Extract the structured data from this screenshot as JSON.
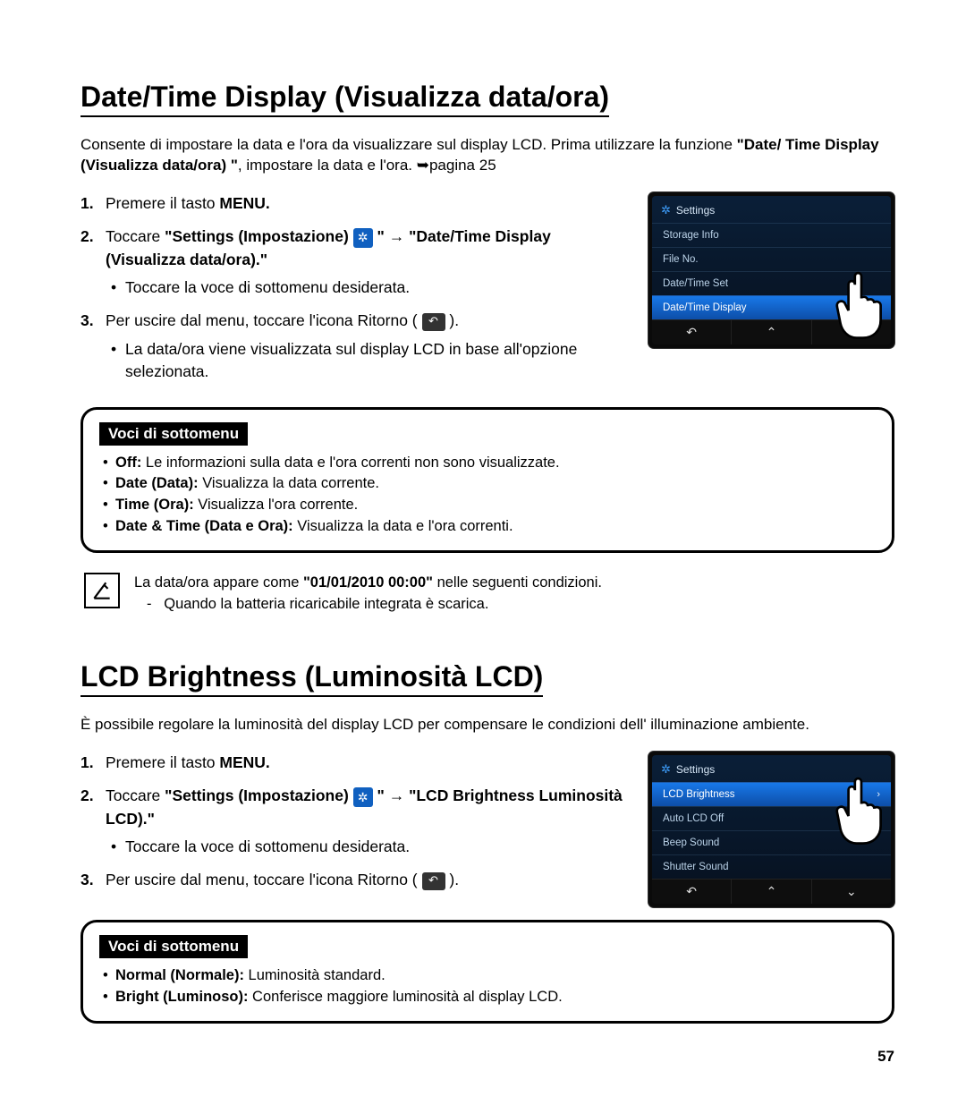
{
  "page_number": "57",
  "section1": {
    "title": "Date/Time Display (Visualizza data/ora)",
    "intro_plain1": "Consente di impostare la data e l'ora da visualizzare sul display LCD. Prima utilizzare la funzione ",
    "intro_bold": "\"Date/ Time Display (Visualizza data/ora) \"",
    "intro_plain2": ", impostare la data e l'ora. ",
    "intro_ref": "➥pagina 25",
    "step1_a": "Premere il tasto ",
    "step1_b": "MENU.",
    "step2_a": "Toccare ",
    "step2_b": "\"Settings (Impostazione) ",
    "step2_c": " \" ",
    "step2_arrow": "→",
    "step2_d": " \"Date/Time Display (Visualizza data/ora).\"",
    "step2_sub": "Toccare la voce di sottomenu desiderata.",
    "step3_a": "Per uscire dal menu, toccare l'icona Ritorno ( ",
    "step3_b": " ).",
    "step3_sub": "La data/ora viene visualizzata sul display LCD in base all'opzione selezionata.",
    "submenu_label": "Voci di sottomenu",
    "submenu_items": [
      {
        "b": "Off:",
        "t": " Le informazioni sulla data e l'ora correnti non sono visualizzate."
      },
      {
        "b": "Date (Data):",
        "t": " Visualizza la data corrente."
      },
      {
        "b": "Time (Ora):",
        "t": " Visualizza l'ora corrente."
      },
      {
        "b": "Date & Time (Data e Ora):",
        "t": " Visualizza la data e l'ora correnti."
      }
    ],
    "note_line1_a": "La data/ora appare come ",
    "note_line1_b": "\"01/01/2010 00:00\"",
    "note_line1_c": " nelle seguenti condizioni.",
    "note_line2": "Quando la batteria ricaricabile integrata è scarica.",
    "screenshot": {
      "header": "Settings",
      "items": [
        "Storage Info",
        "File No.",
        "Date/Time Set"
      ],
      "selected": "Date/Time Display",
      "nav": [
        "↶",
        "⌃",
        "⌄"
      ]
    }
  },
  "section2": {
    "title": "LCD Brightness (Luminosità LCD)",
    "intro": "È possibile regolare la luminosità del display LCD per compensare le condizioni dell' illuminazione ambiente.",
    "step1_a": "Premere il tasto ",
    "step1_b": "MENU.",
    "step2_a": "Toccare ",
    "step2_b": "\"Settings (Impostazione) ",
    "step2_c": " \" ",
    "step2_arrow": "→",
    "step2_d": " \"LCD Brightness Luminosità LCD).\"",
    "step2_sub": "Toccare la voce di sottomenu desiderata.",
    "step3_a": "Per uscire dal menu, toccare l'icona Ritorno ( ",
    "step3_b": " ).",
    "submenu_label": "Voci di sottomenu",
    "submenu_items": [
      {
        "b": "Normal (Normale):",
        "t": " Luminosità standard."
      },
      {
        "b": "Bright (Luminoso):",
        "t": " Conferisce maggiore luminosità al display LCD."
      }
    ],
    "screenshot": {
      "header": "Settings",
      "selected": "LCD Brightness",
      "items": [
        "Auto LCD Off",
        "Beep Sound",
        "Shutter Sound"
      ],
      "nav": [
        "↶",
        "⌃",
        "⌄"
      ]
    }
  }
}
